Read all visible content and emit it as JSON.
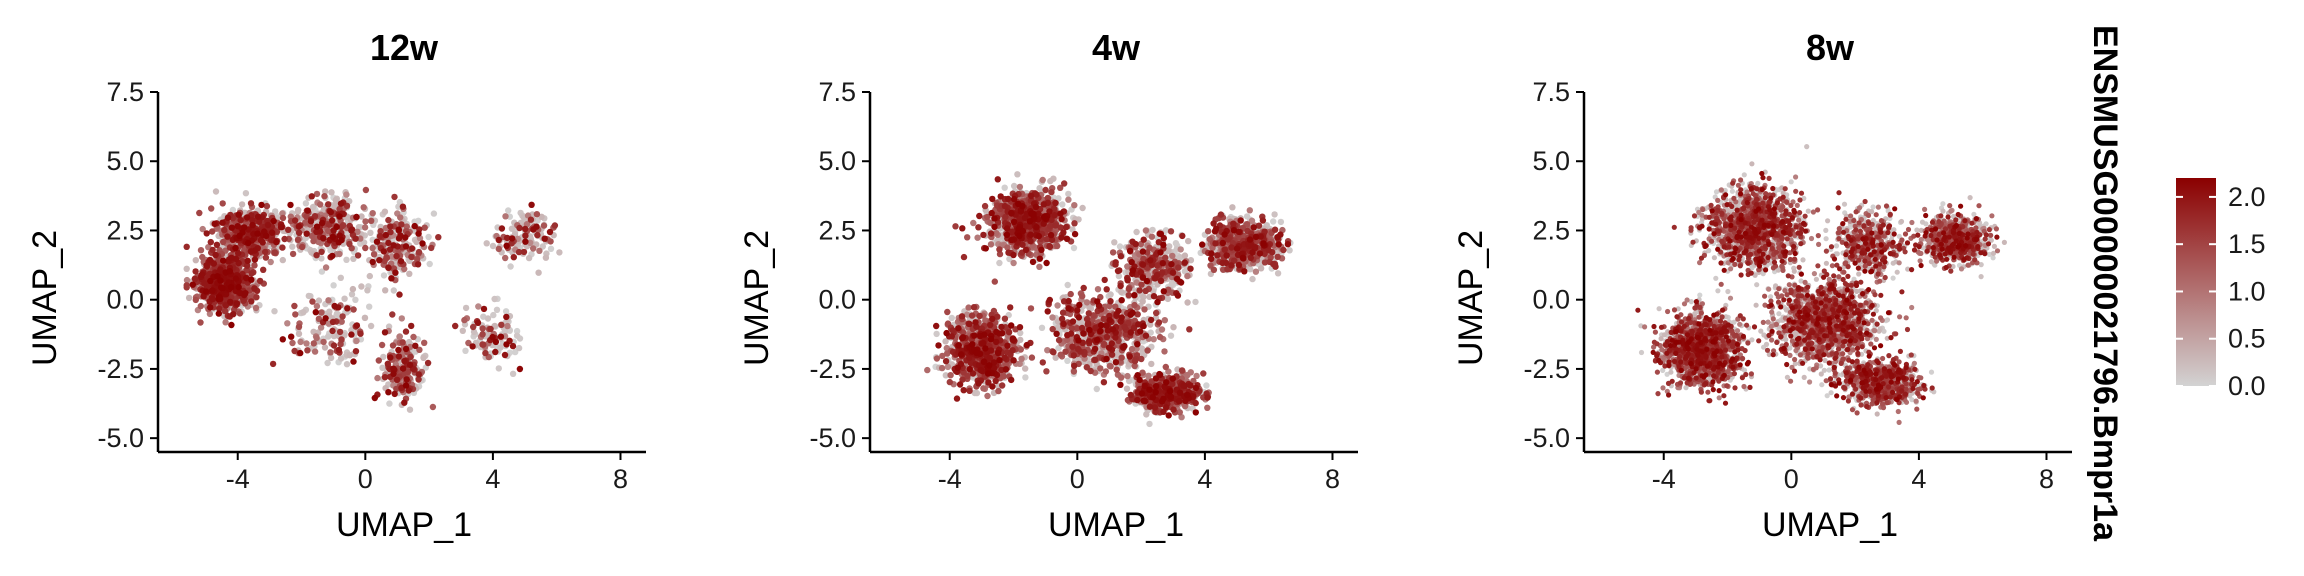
{
  "figure": {
    "feature_label": "ENSMUSG00000021796.Bmpr1a"
  },
  "colors": {
    "low": "#d3d3d3",
    "high": "#8b0000",
    "axis": "#000000"
  },
  "chart_data": [
    {
      "type": "scatter",
      "title": "12w",
      "xlabel": "UMAP_1",
      "ylabel": "UMAP_2",
      "xlim": [
        -6.5,
        8.8
      ],
      "ylim": [
        -5.5,
        7.5
      ],
      "xticks": [
        -4,
        0,
        4,
        8
      ],
      "xtick_labels": [
        "-4",
        "0",
        "4",
        "8"
      ],
      "yticks": [
        -5.0,
        -2.5,
        0.0,
        2.5,
        5.0,
        7.5
      ],
      "ytick_labels": [
        "-5.0",
        "-2.5",
        "0.0",
        "2.5",
        "5.0",
        "7.5"
      ],
      "point_count": 2600,
      "clusters": [
        {
          "center": [
            -4.4,
            0.6
          ],
          "spread": [
            0.8,
            0.9
          ],
          "weight": 0.34,
          "expression": 0.72
        },
        {
          "center": [
            -3.6,
            2.4
          ],
          "spread": [
            0.9,
            0.8
          ],
          "weight": 0.2,
          "expression": 0.62
        },
        {
          "center": [
            -1.2,
            2.6
          ],
          "spread": [
            1.1,
            1.0
          ],
          "weight": 0.14,
          "expression": 0.45
        },
        {
          "center": [
            1.0,
            2.0
          ],
          "spread": [
            0.8,
            1.2
          ],
          "weight": 0.09,
          "expression": 0.4
        },
        {
          "center": [
            1.2,
            -2.5
          ],
          "spread": [
            0.6,
            1.1
          ],
          "weight": 0.08,
          "expression": 0.55
        },
        {
          "center": [
            -1.0,
            -1.0
          ],
          "spread": [
            1.3,
            1.2
          ],
          "weight": 0.06,
          "expression": 0.35
        },
        {
          "center": [
            5.0,
            2.3
          ],
          "spread": [
            0.9,
            0.8
          ],
          "weight": 0.05,
          "expression": 0.38
        },
        {
          "center": [
            4.0,
            -1.3
          ],
          "spread": [
            0.8,
            1.0
          ],
          "weight": 0.04,
          "expression": 0.4
        }
      ]
    },
    {
      "type": "scatter",
      "title": "4w",
      "xlabel": "UMAP_1",
      "ylabel": "UMAP_2",
      "xlim": [
        -6.5,
        8.8
      ],
      "ylim": [
        -5.5,
        7.5
      ],
      "xticks": [
        -4,
        0,
        4,
        8
      ],
      "xtick_labels": [
        "-4",
        "0",
        "4",
        "8"
      ],
      "yticks": [
        -5.0,
        -2.5,
        0.0,
        2.5,
        5.0,
        7.5
      ],
      "ytick_labels": [
        "-5.0",
        "-2.5",
        "0.0",
        "2.5",
        "5.0",
        "7.5"
      ],
      "point_count": 3800,
      "clusters": [
        {
          "center": [
            -1.6,
            2.8
          ],
          "spread": [
            1.1,
            1.0
          ],
          "weight": 0.22,
          "expression": 0.62
        },
        {
          "center": [
            -3.0,
            -1.8
          ],
          "spread": [
            1.0,
            1.1
          ],
          "weight": 0.2,
          "expression": 0.68
        },
        {
          "center": [
            0.8,
            -1.2
          ],
          "spread": [
            1.4,
            1.2
          ],
          "weight": 0.18,
          "expression": 0.52
        },
        {
          "center": [
            2.8,
            -3.4
          ],
          "spread": [
            1.0,
            0.6
          ],
          "weight": 0.14,
          "expression": 0.7
        },
        {
          "center": [
            5.2,
            2.0
          ],
          "spread": [
            1.0,
            0.8
          ],
          "weight": 0.16,
          "expression": 0.55
        },
        {
          "center": [
            2.4,
            1.2
          ],
          "spread": [
            1.0,
            1.0
          ],
          "weight": 0.1,
          "expression": 0.45
        }
      ]
    },
    {
      "type": "scatter",
      "title": "8w",
      "xlabel": "UMAP_1",
      "ylabel": "UMAP_2",
      "xlim": [
        -6.5,
        8.8
      ],
      "ylim": [
        -5.5,
        7.5
      ],
      "xticks": [
        -4,
        0,
        4,
        8
      ],
      "xtick_labels": [
        "-4",
        "0",
        "4",
        "8"
      ],
      "yticks": [
        -5.0,
        -2.5,
        0.0,
        2.5,
        5.0,
        7.5
      ],
      "ytick_labels": [
        "-5.0",
        "-2.5",
        "0.0",
        "2.5",
        "5.0",
        "7.5"
      ],
      "point_count": 6000,
      "clusters": [
        {
          "center": [
            -1.2,
            2.6
          ],
          "spread": [
            1.3,
            1.3
          ],
          "weight": 0.22,
          "expression": 0.62
        },
        {
          "center": [
            -2.8,
            -1.8
          ],
          "spread": [
            1.1,
            1.2
          ],
          "weight": 0.22,
          "expression": 0.7
        },
        {
          "center": [
            1.0,
            -0.8
          ],
          "spread": [
            1.5,
            1.4
          ],
          "weight": 0.24,
          "expression": 0.58
        },
        {
          "center": [
            2.8,
            -3.0
          ],
          "spread": [
            1.1,
            0.7
          ],
          "weight": 0.12,
          "expression": 0.62
        },
        {
          "center": [
            5.1,
            2.2
          ],
          "spread": [
            1.0,
            0.8
          ],
          "weight": 0.12,
          "expression": 0.5
        },
        {
          "center": [
            2.4,
            2.0
          ],
          "spread": [
            1.0,
            1.0
          ],
          "weight": 0.08,
          "expression": 0.55
        }
      ]
    }
  ],
  "legend": {
    "ticks": [
      0.0,
      0.5,
      1.0,
      1.5,
      2.0
    ],
    "tick_labels": [
      "0.0",
      "0.5",
      "1.0",
      "1.5",
      "2.0"
    ],
    "range": [
      0.0,
      2.2
    ]
  }
}
